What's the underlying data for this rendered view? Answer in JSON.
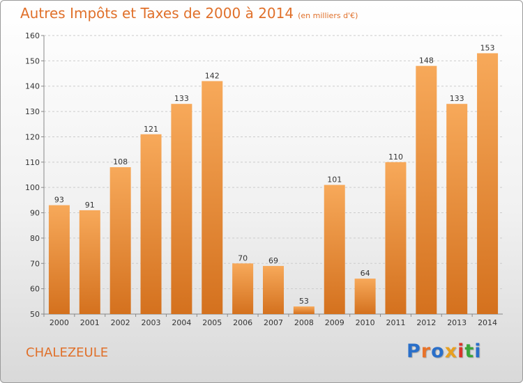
{
  "title": "Autres Impôts et Taxes de 2000 à 2014",
  "title_unit": "(en milliers d'€)",
  "commune": "CHALEZEULE",
  "logo": {
    "text": "Proxiti",
    "letter_colors": [
      "#2a6fc9",
      "#e8732a",
      "#2a6fc9",
      "#e8a020",
      "#d8342a",
      "#3aa53a",
      "#2a6fc9"
    ]
  },
  "colors": {
    "accent": "#e0702a",
    "bar_top": "#f7a95a",
    "bar_bottom": "#d4711e",
    "axis_text": "#333333",
    "grid": "#cccccc"
  },
  "chart_data": {
    "type": "bar",
    "categories": [
      "2000",
      "2001",
      "2002",
      "2003",
      "2004",
      "2005",
      "2006",
      "2007",
      "2008",
      "2009",
      "2010",
      "2011",
      "2012",
      "2013",
      "2014"
    ],
    "values": [
      93,
      91,
      108,
      121,
      133,
      142,
      70,
      69,
      53,
      101,
      64,
      110,
      148,
      133,
      153
    ],
    "ylim": [
      50,
      160
    ],
    "yticks": [
      50,
      60,
      70,
      80,
      90,
      100,
      110,
      120,
      130,
      140,
      150,
      160
    ],
    "grid": true,
    "data_labels": true
  }
}
